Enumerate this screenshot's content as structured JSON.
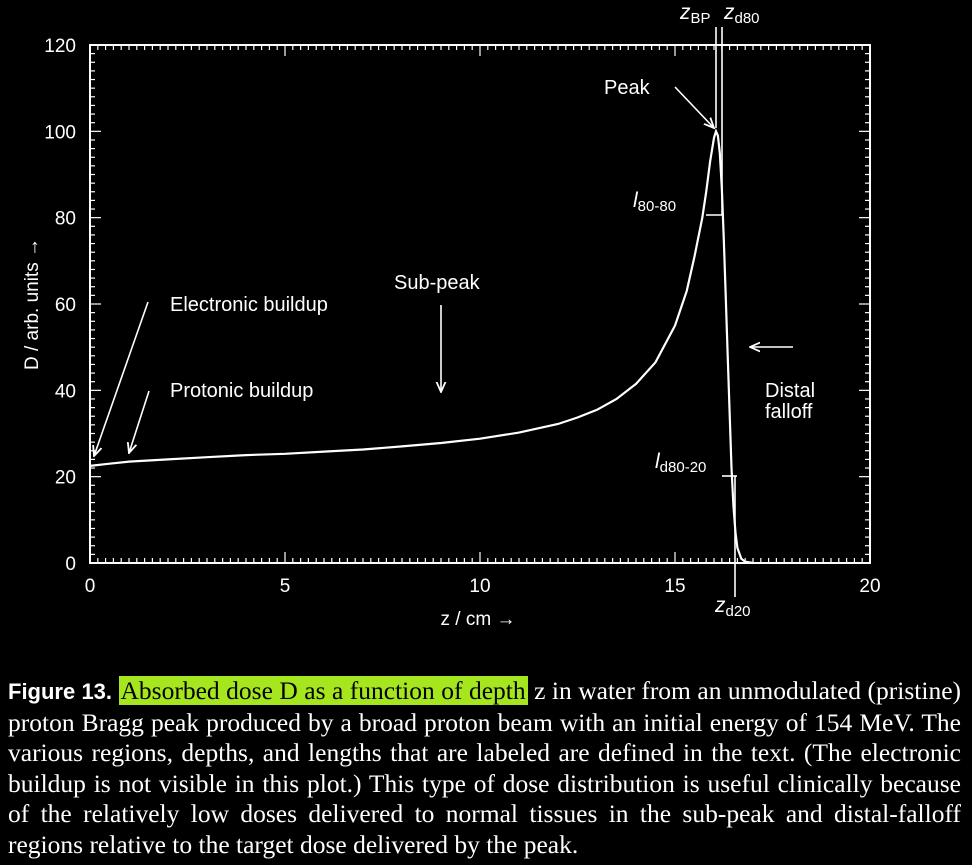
{
  "chart_data": {
    "type": "line",
    "xlabel": "z / cm →",
    "ylabel": "D / arb. units →",
    "xlim": [
      0,
      20
    ],
    "ylim": [
      0,
      120
    ],
    "x_ticks": [
      "0",
      "5",
      "10",
      "15",
      "20"
    ],
    "y_ticks": [
      "0",
      "20",
      "40",
      "60",
      "80",
      "100",
      "120"
    ],
    "grid": false,
    "series": [
      {
        "x": [
          0,
          0.5,
          1,
          2,
          3,
          4,
          5,
          6,
          7,
          8,
          9,
          10,
          11,
          12,
          12.5,
          13,
          13.5,
          14,
          14.5,
          15,
          15.3,
          15.5,
          15.7,
          15.8,
          15.9,
          16.0,
          16.05,
          16.1,
          16.15,
          16.2,
          16.25,
          16.3,
          16.35,
          16.4,
          16.45,
          16.5,
          16.55,
          16.6,
          16.7,
          16.8,
          17.0
        ],
        "y": [
          22.5,
          23,
          23.5,
          24,
          24.5,
          25,
          25.3,
          25.8,
          26.3,
          27,
          27.8,
          28.8,
          30.2,
          32.2,
          33.7,
          35.5,
          38,
          41.5,
          46.5,
          55,
          63,
          71,
          80,
          86,
          93,
          98.5,
          100,
          99,
          95,
          87,
          75,
          62,
          48,
          35,
          22,
          13,
          7,
          3.5,
          1,
          0.3,
          0
        ]
      }
    ],
    "annotations": {
      "peak": "Peak",
      "sub_peak": "Sub-peak",
      "electronic_buildup": "Electronic buildup",
      "protonic_buildup": "Protonic buildup",
      "distal_falloff_line1": "Distal",
      "distal_falloff_line2": "falloff",
      "z_bp": "BP",
      "z_d80": "d80",
      "z_d20": "d20",
      "l_80_80": "80-80",
      "l_d80_20": "d80-20",
      "z_letter": "z",
      "l_letter": "l"
    }
  },
  "caption": {
    "label": "Figure 13.",
    "highlighted": "Absorbed dose D as a function of depth",
    "rest": " z in water from an unmodulated (pristine) proton Bragg peak produced by a broad proton beam with an initial energy of 154 MeV. The various regions, depths, and lengths that are labeled are defined in the text. (The electronic buildup is not visible in this plot.) This type of dose distribution is useful clinically because of the relatively low doses delivered to normal tissues in the sub-peak and distal-falloff regions relative to the target dose delivered by the peak."
  },
  "colors": {
    "background": "#000000",
    "foreground": "#ffffff",
    "highlight": "#a5e61f"
  }
}
